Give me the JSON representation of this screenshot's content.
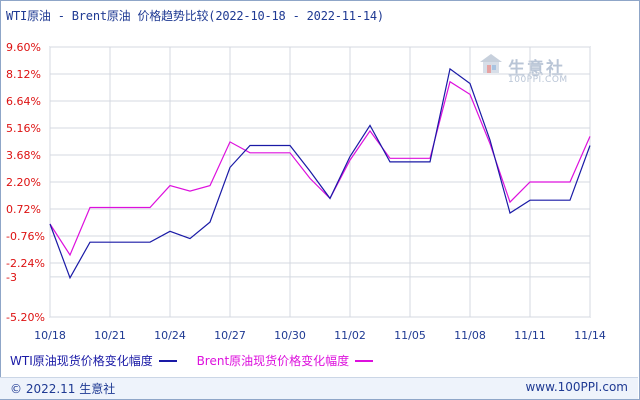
{
  "header": {
    "title": "WTI原油 - Brent原油 价格趋势比较(2022-10-18 - 2022-11-14)"
  },
  "watermark": {
    "name": "生意社",
    "site": "100PPI.COM"
  },
  "footer": {
    "left": "© 2022.11 生意社",
    "right": "www.100PPI.com"
  },
  "chart_data": {
    "type": "line",
    "title": "WTI原油 - Brent原油 价格趋势比较(2022-10-18 - 2022-11-14)",
    "x": [
      "10/18",
      "10/19",
      "10/20",
      "10/21",
      "10/22",
      "10/23",
      "10/24",
      "10/25",
      "10/26",
      "10/27",
      "10/28",
      "10/29",
      "10/30",
      "10/31",
      "11/01",
      "11/02",
      "11/03",
      "11/04",
      "11/05",
      "11/06",
      "11/07",
      "11/08",
      "11/09",
      "11/10",
      "11/11",
      "11/12",
      "11/13",
      "11/14"
    ],
    "xtick_labels": [
      "10/18",
      "10/21",
      "10/24",
      "10/27",
      "10/30",
      "11/02",
      "11/05",
      "11/08",
      "11/11",
      "11/14"
    ],
    "xtick_indices": [
      0,
      3,
      6,
      9,
      12,
      15,
      18,
      21,
      24,
      27
    ],
    "yticks": [
      9.6,
      8.12,
      6.64,
      5.16,
      3.68,
      2.2,
      0.72,
      -0.76,
      -2.24,
      -3.0,
      -5.2
    ],
    "ytick_labels": [
      "9.60%",
      "8.12%",
      "6.64%",
      "5.16%",
      "3.68%",
      "2.20%",
      "0.72%",
      "-0.76%",
      "-2.24%",
      "-3",
      "-5.20%"
    ],
    "ylim": [
      -5.2,
      9.6
    ],
    "grid": true,
    "legend_position": "bottom",
    "series": [
      {
        "name": "WTI原油现货价格变化幅度",
        "color": "#1a1aa6",
        "values": [
          -0.1,
          -3.05,
          -1.1,
          -1.1,
          -1.1,
          -1.1,
          -0.5,
          -0.9,
          0.0,
          3.0,
          4.2,
          4.2,
          4.2,
          2.8,
          1.3,
          3.6,
          5.3,
          3.3,
          3.3,
          3.3,
          8.4,
          7.6,
          4.5,
          0.5,
          1.2,
          1.2,
          1.2,
          4.2
        ]
      },
      {
        "name": "Brent原油现货价格变化幅度",
        "color": "#dd10dd",
        "values": [
          -0.1,
          -1.8,
          0.8,
          0.8,
          0.8,
          0.8,
          2.0,
          1.7,
          2.0,
          4.4,
          3.8,
          3.8,
          3.8,
          2.4,
          1.3,
          3.4,
          5.0,
          3.5,
          3.5,
          3.5,
          7.7,
          7.0,
          4.3,
          1.1,
          2.2,
          2.2,
          2.2,
          4.7
        ]
      }
    ]
  }
}
